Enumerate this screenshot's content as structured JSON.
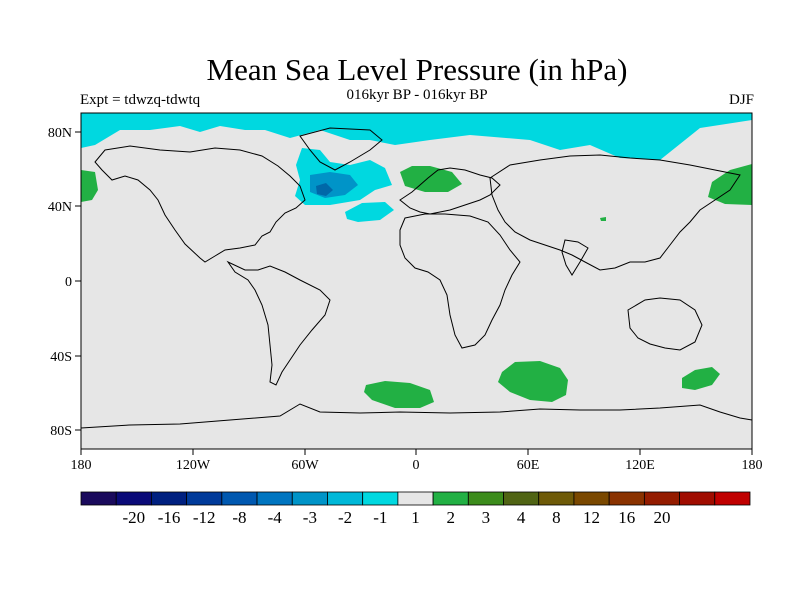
{
  "header": {
    "title": "Mean Sea Level Pressure (in hPa)",
    "subtitle": "016kyr BP - 016kyr BP",
    "experiment": "Expt = tdwzq-tdwtq",
    "season": "DJF"
  },
  "axes": {
    "x_ticks": [
      "180",
      "120W",
      "60W",
      "0",
      "60E",
      "120E",
      "180"
    ],
    "y_ticks": [
      "80N",
      "40N",
      "0",
      "40S",
      "80S"
    ]
  },
  "colors": {
    "background": "#e6e6e6",
    "land_outline": "#000000",
    "neg_light": "#00d8e0",
    "neg_mid": "#0094c8",
    "neg_dark": "#0068a8",
    "pos_light": "#22b044"
  },
  "colorbar": {
    "colors": [
      "#1a0a5c",
      "#0a0a78",
      "#002080",
      "#003a9a",
      "#0058b0",
      "#0075c0",
      "#0094c8",
      "#00b8d8",
      "#00d8e0",
      "#e6e6e6",
      "#22b044",
      "#3c8c1c",
      "#506414",
      "#6e5a08",
      "#7a4800",
      "#8a3200",
      "#941c00",
      "#a00c00",
      "#c00000"
    ],
    "labels": [
      "-20",
      "-16",
      "-12",
      "-8",
      "-4",
      "-3",
      "-2",
      "-1",
      "1",
      "2",
      "3",
      "4",
      "8",
      "12",
      "16",
      "20"
    ]
  }
}
